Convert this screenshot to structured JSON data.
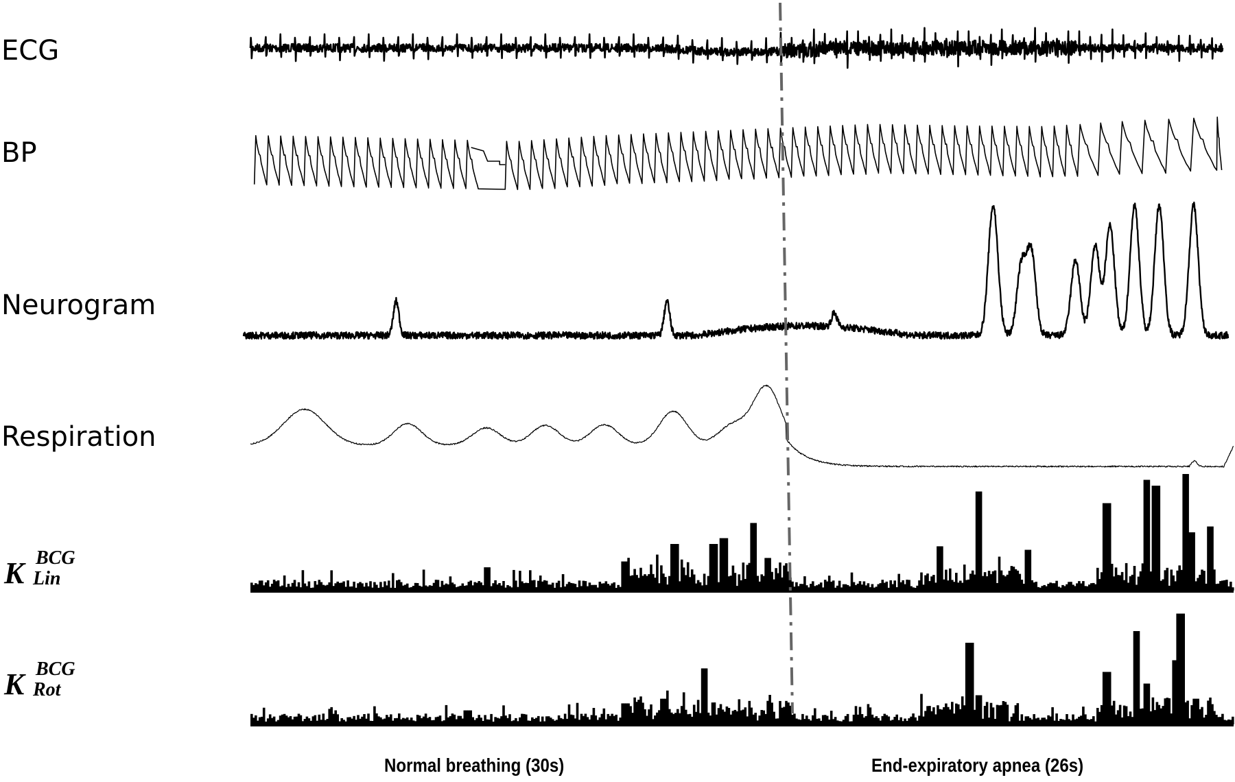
{
  "chart_data": {
    "type": "line",
    "title": "",
    "xlabel": "",
    "ylabel": "",
    "grid": false,
    "legend": "none",
    "description": "Stacked physiological time series across two phases separated by a vertical dash-dot line",
    "phases": [
      {
        "label": "Normal breathing (30s)",
        "duration_s": 30
      },
      {
        "label": "End-expiratory apnea (26s)",
        "duration_s": 26
      }
    ],
    "divider": {
      "style": "dash-dot",
      "color": "#666666",
      "position_fraction": 0.545
    },
    "series": [
      {
        "name": "ECG",
        "kind": "ecg",
        "beats_normal": 36,
        "beats_apnea": 40,
        "amplitude_note": "noisier and larger R peaks after divider, settling near end"
      },
      {
        "name": "BP",
        "kind": "pulse",
        "beats": 68,
        "amplitude_note": "gap/step artifact near 23% of trace; baseline rises through apnea; beats slow and widen in last 15%",
        "systolic_rel": [
          0.8,
          0.78,
          0.75,
          0.72,
          0.8,
          0.85,
          0.9,
          0.95,
          0.93,
          0.92,
          1.0,
          1.05
        ],
        "diastolic_rel": [
          0.15,
          0.12,
          0.1,
          0.08,
          0.15,
          0.2,
          0.25,
          0.3,
          0.28,
          0.25,
          0.3,
          0.35
        ]
      },
      {
        "name": "Neurogram",
        "kind": "bursts",
        "burst_positions": [
          0.155,
          0.43,
          0.6,
          0.76,
          0.763,
          0.79,
          0.8,
          0.845,
          0.865,
          0.88,
          0.905,
          0.93,
          0.965
        ],
        "burst_heights": [
          0.25,
          0.25,
          0.1,
          0.55,
          0.45,
          0.5,
          0.6,
          0.55,
          0.65,
          0.8,
          0.95,
          0.95,
          0.95
        ],
        "amplitude_note": "low-amplitude noisy baseline during normal breathing; large multi-peak bursts during late apnea"
      },
      {
        "name": "Respiration",
        "kind": "breaths",
        "breath_peaks_x": [
          0.055,
          0.16,
          0.24,
          0.3,
          0.36,
          0.43,
          0.49,
          0.525
        ],
        "breath_peaks_y": [
          0.58,
          0.35,
          0.28,
          0.32,
          0.33,
          0.55,
          0.32,
          0.95
        ],
        "amplitude_note": "flat near zero throughout apnea; small rise at very end"
      },
      {
        "name": "K_Lin^BCG",
        "kind": "energy",
        "spike_positions": [
          0.24,
          0.38,
          0.43,
          0.47,
          0.48,
          0.51,
          0.525,
          0.7,
          0.74,
          0.79,
          0.87,
          0.91,
          0.92,
          0.95,
          0.955,
          0.975
        ],
        "spike_heights": [
          0.2,
          0.25,
          0.4,
          0.4,
          0.45,
          0.58,
          0.28,
          0.38,
          0.85,
          0.35,
          0.75,
          0.95,
          0.9,
          1.0,
          0.5,
          0.55
        ]
      },
      {
        "name": "K_Rot^BCG",
        "kind": "energy",
        "spike_positions": [
          0.22,
          0.38,
          0.42,
          0.46,
          0.5,
          0.545,
          0.73,
          0.74,
          0.87,
          0.9,
          0.91,
          0.94,
          0.945,
          0.96
        ],
        "spike_heights": [
          0.12,
          0.18,
          0.22,
          0.48,
          0.12,
          0.15,
          0.7,
          0.25,
          0.45,
          0.8,
          0.35,
          0.55,
          0.95,
          0.22
        ]
      }
    ]
  },
  "labels": {
    "ecg": "ECG",
    "bp": "BP",
    "neurogram": "Neurogram",
    "respiration": "Respiration",
    "k_lin": {
      "main": "K",
      "sup": "BCG",
      "sub": "Lin"
    },
    "k_rot": {
      "main": "K",
      "sup": "BCG",
      "sub": "Rot"
    }
  },
  "phase_labels": {
    "normal": "Normal breathing (30s)",
    "apnea": "End-expiratory apnea (26s)"
  },
  "colors": {
    "trace": "#000000",
    "divider": "#666666",
    "background": "#ffffff"
  }
}
